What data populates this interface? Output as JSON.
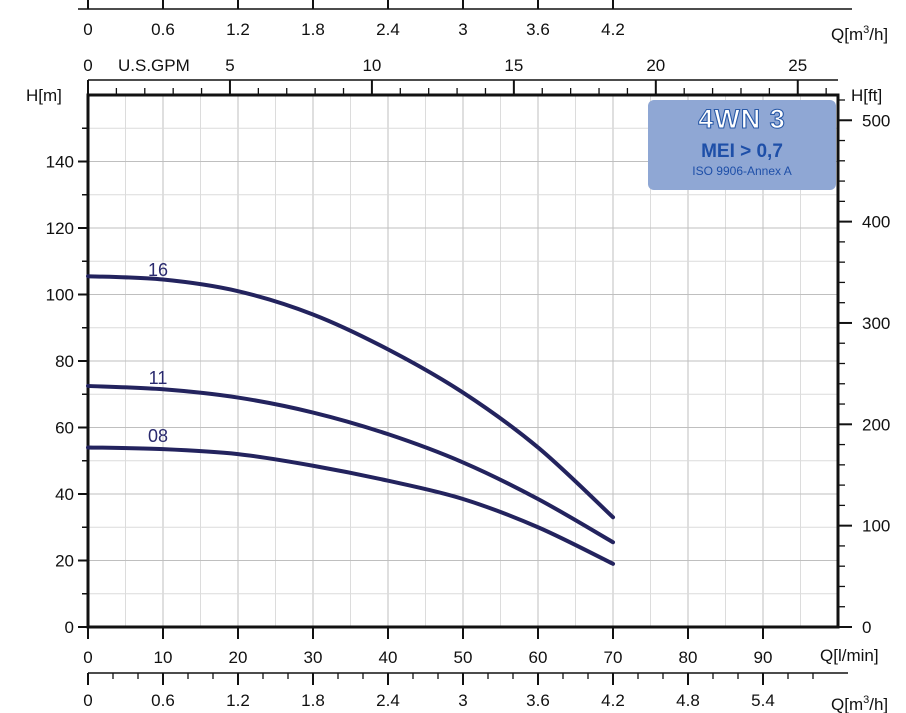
{
  "chart_data": {
    "type": "line",
    "title": "4WN 3",
    "badge": {
      "title": "4WN 3",
      "mei": "MEI > 0,7",
      "iso": "ISO 9906-Annex A",
      "color": "#8fa7d4",
      "text_color": "#1e4fa8"
    },
    "x_primary": {
      "label": "Q[l/min]",
      "range": [
        0,
        100
      ],
      "ticks": [
        "0",
        "10",
        "20",
        "30",
        "40",
        "50",
        "60",
        "70",
        "80",
        "90"
      ]
    },
    "x_top_m3h": {
      "label": "Q[m³/h]",
      "label_main": "Q[m",
      "label_sup": "3",
      "label_tail": "/h]",
      "ticks": [
        {
          "value": 0,
          "text": "0"
        },
        {
          "value": 0.6,
          "text": "0.6"
        },
        {
          "value": 1.2,
          "text": "1.2"
        },
        {
          "value": 1.8,
          "text": "1.8"
        },
        {
          "value": 2.4,
          "text": "2.4"
        },
        {
          "value": 3,
          "text": "3"
        },
        {
          "value": 3.6,
          "text": "3.6"
        },
        {
          "value": 4.2,
          "text": "4.2"
        }
      ]
    },
    "x_top_gpm": {
      "label": "U.S.GPM",
      "ticks": [
        {
          "value": 0,
          "text": "0"
        },
        {
          "value": 5,
          "text": "5"
        },
        {
          "value": 10,
          "text": "10"
        },
        {
          "value": 15,
          "text": "15"
        },
        {
          "value": 20,
          "text": "20"
        },
        {
          "value": 25,
          "text": "25"
        }
      ]
    },
    "x_bottom_m3h": {
      "label": "Q[m³/h]",
      "label_main": "Q[m",
      "label_sup": "3",
      "label_tail": "/h]",
      "ticks": [
        {
          "value": 0,
          "text": "0"
        },
        {
          "value": 0.6,
          "text": "0.6"
        },
        {
          "value": 1.2,
          "text": "1.2"
        },
        {
          "value": 1.8,
          "text": "1.8"
        },
        {
          "value": 2.4,
          "text": "2.4"
        },
        {
          "value": 3,
          "text": "3"
        },
        {
          "value": 3.6,
          "text": "3.6"
        },
        {
          "value": 4.2,
          "text": "4.2"
        },
        {
          "value": 4.8,
          "text": "4.8"
        },
        {
          "value": 5.4,
          "text": "5.4"
        }
      ]
    },
    "y_left": {
      "label": "H[m]",
      "range": [
        0,
        160
      ],
      "ticks": [
        "0",
        "20",
        "40",
        "60",
        "80",
        "100",
        "120",
        "140"
      ]
    },
    "y_right": {
      "label": "H[ft]",
      "ticks": [
        {
          "value": 0,
          "text": "0"
        },
        {
          "value": 100,
          "text": "100"
        },
        {
          "value": 200,
          "text": "200"
        },
        {
          "value": 300,
          "text": "300"
        },
        {
          "value": 400,
          "text": "400"
        },
        {
          "value": 500,
          "text": "500"
        }
      ]
    },
    "grid": true,
    "series": [
      {
        "name": "16",
        "color": "#23235e",
        "x": [
          0,
          10,
          20,
          30,
          40,
          50,
          60,
          70
        ],
        "y": [
          105.5,
          104.5,
          101,
          94,
          83.5,
          70.5,
          54,
          33
        ]
      },
      {
        "name": "11",
        "color": "#23235e",
        "x": [
          0,
          10,
          20,
          30,
          40,
          50,
          60,
          70
        ],
        "y": [
          72.5,
          71.5,
          69,
          64.5,
          58,
          49.5,
          38.5,
          25.5
        ]
      },
      {
        "name": "08",
        "color": "#23235e",
        "x": [
          0,
          10,
          20,
          30,
          40,
          50,
          60,
          70
        ],
        "y": [
          54,
          53.5,
          52,
          48.5,
          44,
          38.5,
          30,
          19
        ]
      }
    ]
  }
}
